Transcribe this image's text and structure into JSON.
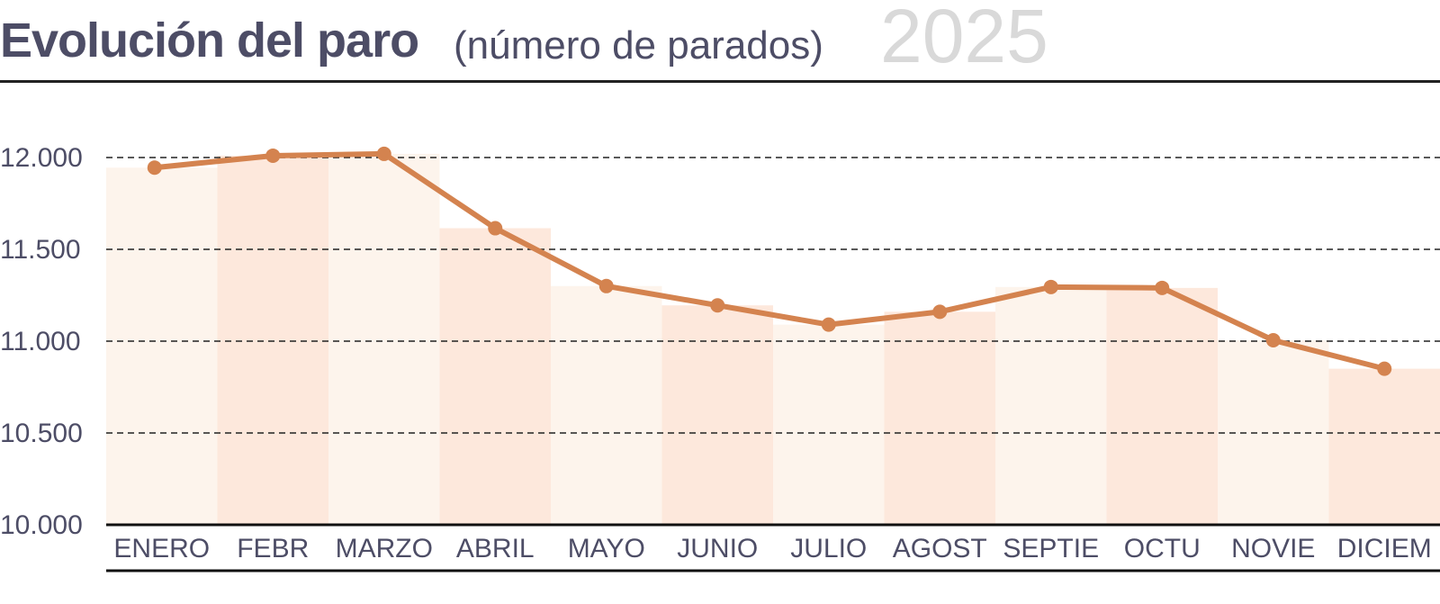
{
  "header": {
    "title": "Evolución del paro",
    "subtitle": "(número de parados)",
    "year": "2025"
  },
  "colors": {
    "line": "#d4834f",
    "bar_light": "#fdf4ec",
    "bar_dark": "#fde8dc",
    "text": "#4d4d66",
    "year": "#d9d9d9"
  },
  "chart_data": {
    "type": "bar+line",
    "categories": [
      "ENERO",
      "FEBR",
      "MARZO",
      "ABRIL",
      "MAYO",
      "JUNIO",
      "JULIO",
      "AGOST",
      "SEPTIE",
      "OCTU",
      "NOVIE",
      "DICIEM"
    ],
    "values": [
      11945,
      12010,
      12020,
      11615,
      11300,
      11195,
      11090,
      11160,
      11295,
      11290,
      11005,
      10850
    ],
    "ylim": [
      10000,
      12200
    ],
    "yticks": [
      10000,
      10500,
      11000,
      11500,
      12000
    ],
    "ytick_labels": [
      "10.000",
      "10.500",
      "11.000",
      "11.500",
      "12.000"
    ],
    "grid": "horizontal dashed"
  }
}
